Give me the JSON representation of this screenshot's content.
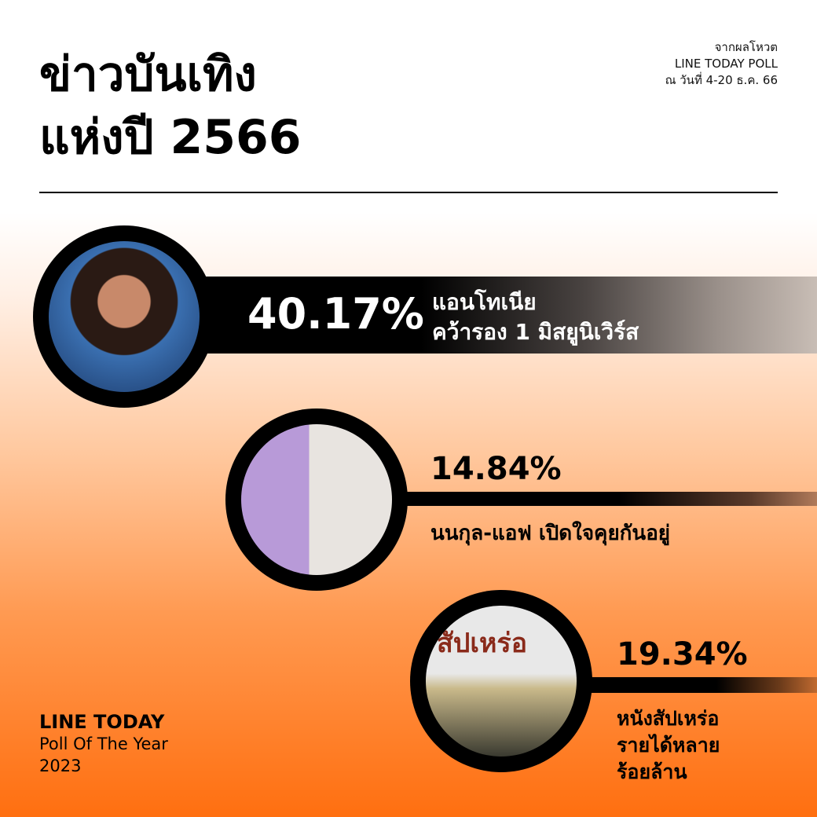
{
  "header": {
    "title_line1": "ข่าวบันเทิง",
    "title_line2": "แห่งปี 2566",
    "source_line1": "จากผลโหวต",
    "source_line2": "LINE TODAY POLL",
    "source_line3": "ณ วันที่ 4-20 ธ.ค. 66"
  },
  "items": [
    {
      "percent": "40.17%",
      "line1": "แอนโทเนีย",
      "line2": "คว้ารอง 1 มิสยูนิเวิร์ส"
    },
    {
      "percent": "14.84%",
      "line1": "นนกุล-แอฟ เปิดใจคุยกันอยู่"
    },
    {
      "percent": "19.34%",
      "line1": "หนังสัปเหร่อ",
      "line2": "รายได้หลาย",
      "line3": "ร้อยล้าน",
      "poster_text": "สัปเหร่อ"
    }
  ],
  "footer": {
    "line1": "LINE TODAY",
    "line2": "Poll Of The Year",
    "line3": "2023"
  }
}
